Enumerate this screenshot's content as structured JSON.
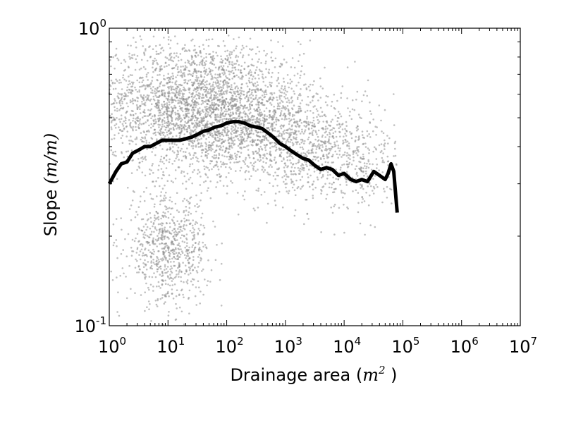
{
  "chart_data": {
    "type": "scatter",
    "title": "",
    "xscale": "log",
    "yscale": "log",
    "xlim": [
      1,
      10000000
    ],
    "ylim": [
      0.1,
      1.0
    ],
    "grid": false,
    "xlabel": {
      "text": "Drainage area ",
      "math_base": "m",
      "math_sup": "2"
    },
    "ylabel": {
      "text": "Slope ",
      "math": "(m/m)"
    },
    "x_ticks": [
      {
        "base": "10",
        "exp": "0"
      },
      {
        "base": "10",
        "exp": "1"
      },
      {
        "base": "10",
        "exp": "2"
      },
      {
        "base": "10",
        "exp": "3"
      },
      {
        "base": "10",
        "exp": "4"
      },
      {
        "base": "10",
        "exp": "5"
      },
      {
        "base": "10",
        "exp": "6"
      },
      {
        "base": "10",
        "exp": "7"
      }
    ],
    "y_ticks": [
      {
        "base": "10",
        "exp": "-1"
      },
      {
        "base": "10",
        "exp": "0"
      }
    ],
    "scatter_color": "#8c8c8c",
    "line_color": "#000000",
    "series": [
      {
        "type": "scatter",
        "clusters": [
          {
            "center": [
              30,
              0.55
            ],
            "spread_decades": [
              0.9,
              0.22
            ],
            "weight": 0.55
          },
          {
            "center": [
              10,
              0.18
            ],
            "spread_decades": [
              0.35,
              0.18
            ],
            "weight": 0.15
          },
          {
            "center": [
              500,
              0.45
            ],
            "spread_decades": [
              0.8,
              0.15
            ],
            "weight": 0.18
          },
          {
            "center": [
              8000,
              0.35
            ],
            "spread_decades": [
              0.7,
              0.17
            ],
            "weight": 0.12
          }
        ],
        "x_range": [
          1,
          80000
        ],
        "y_range": [
          0.1,
          0.95
        ]
      },
      {
        "type": "line",
        "points": [
          [
            1.0,
            0.3
          ],
          [
            1.3,
            0.33
          ],
          [
            1.6,
            0.35
          ],
          [
            2.0,
            0.355
          ],
          [
            2.5,
            0.38
          ],
          [
            3.2,
            0.39
          ],
          [
            4.0,
            0.4
          ],
          [
            5.0,
            0.4
          ],
          [
            6.3,
            0.41
          ],
          [
            8.0,
            0.42
          ],
          [
            10,
            0.42
          ],
          [
            13,
            0.42
          ],
          [
            16,
            0.42
          ],
          [
            20,
            0.425
          ],
          [
            25,
            0.43
          ],
          [
            32,
            0.44
          ],
          [
            40,
            0.45
          ],
          [
            50,
            0.455
          ],
          [
            63,
            0.465
          ],
          [
            80,
            0.47
          ],
          [
            100,
            0.48
          ],
          [
            130,
            0.485
          ],
          [
            160,
            0.485
          ],
          [
            200,
            0.48
          ],
          [
            250,
            0.47
          ],
          [
            320,
            0.465
          ],
          [
            400,
            0.46
          ],
          [
            500,
            0.445
          ],
          [
            630,
            0.43
          ],
          [
            800,
            0.41
          ],
          [
            1000,
            0.4
          ],
          [
            1300,
            0.385
          ],
          [
            1600,
            0.375
          ],
          [
            2000,
            0.365
          ],
          [
            2500,
            0.36
          ],
          [
            3200,
            0.345
          ],
          [
            4000,
            0.335
          ],
          [
            5000,
            0.34
          ],
          [
            6300,
            0.335
          ],
          [
            8000,
            0.32
          ],
          [
            10000,
            0.325
          ],
          [
            13000,
            0.31
          ],
          [
            16000,
            0.305
          ],
          [
            20000,
            0.31
          ],
          [
            25000,
            0.305
          ],
          [
            32000,
            0.33
          ],
          [
            40000,
            0.32
          ],
          [
            50000,
            0.31
          ],
          [
            56000,
            0.325
          ],
          [
            63000,
            0.35
          ],
          [
            70000,
            0.33
          ],
          [
            75000,
            0.28
          ],
          [
            80000,
            0.24
          ]
        ]
      }
    ]
  }
}
